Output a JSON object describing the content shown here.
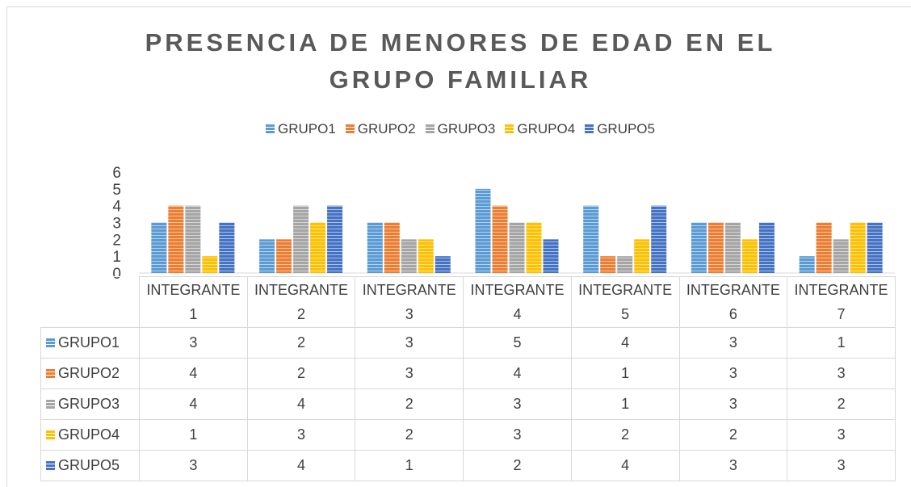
{
  "chart_data": {
    "type": "bar",
    "title": "PRESENCIA DE MENORES DE EDAD EN EL GRUPO FAMILIAR",
    "categories": [
      "INTEGRANTE 1",
      "INTEGRANTE 2",
      "INTEGRANTE 3",
      "INTEGRANTE 4",
      "INTEGRANTE 5",
      "INTEGRANTE 6",
      "INTEGRANTE 7"
    ],
    "series": [
      {
        "name": "GRUPO1",
        "color": "#5b9bd5",
        "values": [
          3,
          2,
          3,
          5,
          4,
          3,
          1
        ]
      },
      {
        "name": "GRUPO2",
        "color": "#ed7d31",
        "values": [
          4,
          2,
          3,
          4,
          1,
          3,
          3
        ]
      },
      {
        "name": "GRUPO3",
        "color": "#a5a5a5",
        "values": [
          4,
          4,
          2,
          3,
          1,
          3,
          2
        ]
      },
      {
        "name": "GRUPO4",
        "color": "#ffc000",
        "values": [
          1,
          3,
          2,
          3,
          2,
          2,
          3
        ]
      },
      {
        "name": "GRUPO5",
        "color": "#4472c4",
        "values": [
          3,
          4,
          1,
          2,
          4,
          3,
          3
        ]
      }
    ],
    "ylim": [
      0,
      6
    ],
    "yticks": [
      0,
      1,
      2,
      3,
      4,
      5,
      6
    ],
    "legend": "top",
    "data_table": true
  }
}
